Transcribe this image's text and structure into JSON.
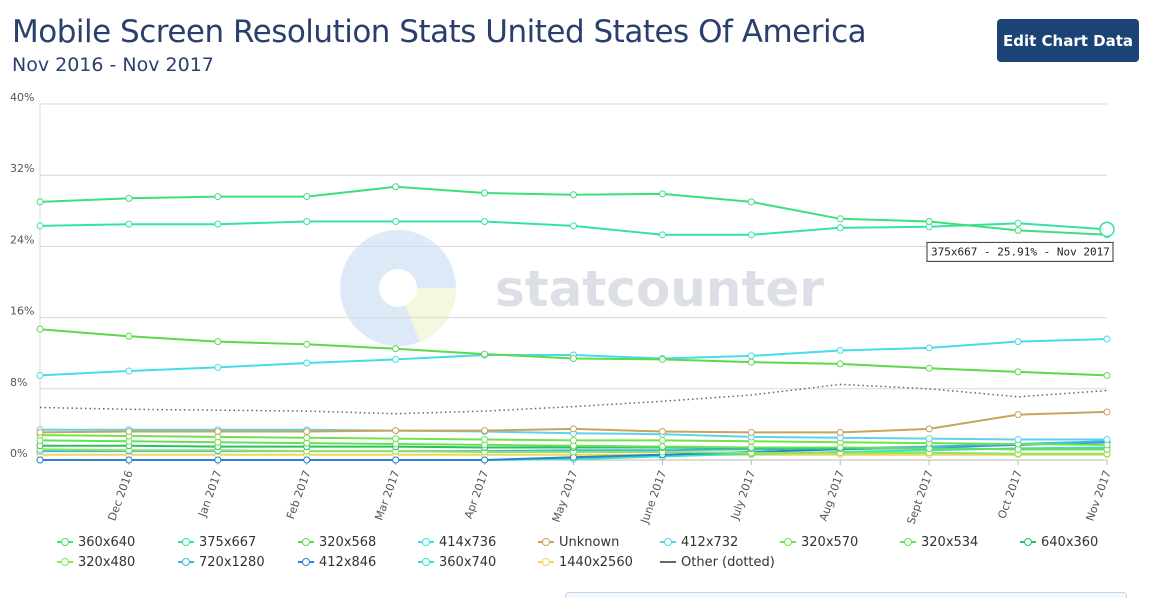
{
  "header": {
    "title": "Mobile Screen Resolution Stats United States Of America",
    "subtitle": "Nov 2016 - Nov 2017",
    "edit_button_label": "Edit Chart Data"
  },
  "watermark": {
    "text": "statcounter"
  },
  "chart_data": {
    "type": "line",
    "title": "Mobile Screen Resolution Stats United States Of America",
    "subtitle": "Nov 2016 - Nov 2017",
    "xlabel": "",
    "ylabel": "",
    "ylim": [
      0,
      40
    ],
    "y_ticks": [
      0,
      8,
      16,
      24,
      32,
      40
    ],
    "y_tick_labels": [
      "0%",
      "8%",
      "16%",
      "24%",
      "32%",
      "40%"
    ],
    "categories": [
      "Nov 2016",
      "Dec 2016",
      "Jan 2017",
      "Feb 2017",
      "Mar 2017",
      "Apr 2017",
      "May 2017",
      "June 2017",
      "July 2017",
      "Aug 2017",
      "Sept 2017",
      "Oct 2017",
      "Nov 2017"
    ],
    "x_tick_labels": [
      "Dec 2016",
      "Jan 2017",
      "Feb 2017",
      "Mar 2017",
      "Apr 2017",
      "May 2017",
      "June 2017",
      "July 2017",
      "Aug 2017",
      "Sept 2017",
      "Oct 2017",
      "Nov 2017"
    ],
    "grid": true,
    "legend_position": "bottom",
    "series": [
      {
        "name": "360x640",
        "color": "#3ee07a",
        "values": [
          29.0,
          29.4,
          29.6,
          29.6,
          30.7,
          30.0,
          29.8,
          29.9,
          29.0,
          27.1,
          26.8,
          25.8,
          25.3
        ]
      },
      {
        "name": "375x667",
        "color": "#34e3a0",
        "values": [
          26.3,
          26.5,
          26.5,
          26.8,
          26.8,
          26.8,
          26.3,
          25.3,
          25.3,
          26.1,
          26.2,
          26.6,
          25.91
        ]
      },
      {
        "name": "320x568",
        "color": "#5fd84e",
        "values": [
          14.7,
          13.9,
          13.3,
          13.0,
          12.5,
          11.9,
          11.4,
          11.3,
          11.0,
          10.8,
          10.3,
          9.9,
          9.5
        ]
      },
      {
        "name": "414x736",
        "color": "#45dde5",
        "values": [
          9.5,
          10.0,
          10.4,
          10.9,
          11.3,
          11.8,
          11.8,
          11.4,
          11.7,
          12.3,
          12.6,
          13.3,
          13.6
        ]
      },
      {
        "name": "Unknown",
        "color": "#c9a35a",
        "values": [
          3.1,
          3.2,
          3.2,
          3.2,
          3.3,
          3.3,
          3.5,
          3.2,
          3.1,
          3.1,
          3.5,
          5.1,
          5.4
        ]
      },
      {
        "name": "412x732",
        "color": "#5fd1ef",
        "values": [
          3.4,
          3.4,
          3.4,
          3.4,
          3.3,
          3.2,
          3.0,
          2.9,
          2.6,
          2.5,
          2.4,
          2.3,
          2.3
        ]
      },
      {
        "name": "320x570",
        "color": "#6fe34a",
        "values": [
          2.8,
          2.7,
          2.6,
          2.5,
          2.4,
          2.3,
          2.2,
          2.2,
          2.1,
          2.0,
          1.9,
          1.8,
          1.7
        ]
      },
      {
        "name": "320x534",
        "color": "#66e05c",
        "values": [
          2.2,
          2.1,
          2.0,
          1.9,
          1.8,
          1.7,
          1.6,
          1.5,
          1.4,
          1.4,
          1.3,
          1.2,
          1.2
        ]
      },
      {
        "name": "640x360",
        "color": "#2cc05a",
        "values": [
          1.6,
          1.6,
          1.5,
          1.5,
          1.5,
          1.4,
          1.4,
          1.4,
          1.3,
          1.3,
          1.3,
          1.2,
          1.2
        ]
      },
      {
        "name": "320x480",
        "color": "#8ae65a",
        "values": [
          1.2,
          1.1,
          1.1,
          1.0,
          1.0,
          0.9,
          0.9,
          0.9,
          0.8,
          0.8,
          0.8,
          0.7,
          0.7
        ]
      },
      {
        "name": "720x1280",
        "color": "#3fb6e8",
        "values": [
          1.0,
          1.0,
          1.0,
          1.0,
          1.0,
          1.0,
          1.1,
          1.1,
          1.2,
          1.3,
          1.5,
          1.8,
          2.1
        ]
      },
      {
        "name": "412x846",
        "color": "#2e7fd6",
        "values": [
          0.0,
          0.0,
          0.0,
          0.0,
          0.0,
          0.0,
          0.3,
          0.6,
          0.9,
          1.2,
          1.4,
          1.7,
          2.0
        ]
      },
      {
        "name": "360x740",
        "color": "#3fe0c0",
        "values": [
          0.0,
          0.0,
          0.0,
          0.0,
          0.0,
          0.0,
          0.1,
          0.4,
          0.7,
          0.9,
          1.1,
          1.3,
          1.4
        ]
      },
      {
        "name": "1440x2560",
        "color": "#f2d45c",
        "values": [
          0.6,
          0.6,
          0.6,
          0.6,
          0.6,
          0.6,
          0.6,
          0.6,
          0.6,
          0.6,
          0.6,
          0.6,
          0.6
        ]
      },
      {
        "name": "Other (dotted)",
        "color": "#666666",
        "dotted": true,
        "values": [
          5.9,
          5.7,
          5.6,
          5.5,
          5.2,
          5.5,
          6.0,
          6.6,
          7.3,
          8.5,
          8.0,
          7.1,
          7.8
        ]
      }
    ],
    "tooltip": {
      "text": "375x667 - 25.91% - Nov 2017",
      "series": "375x667",
      "category": "Nov 2017"
    }
  }
}
